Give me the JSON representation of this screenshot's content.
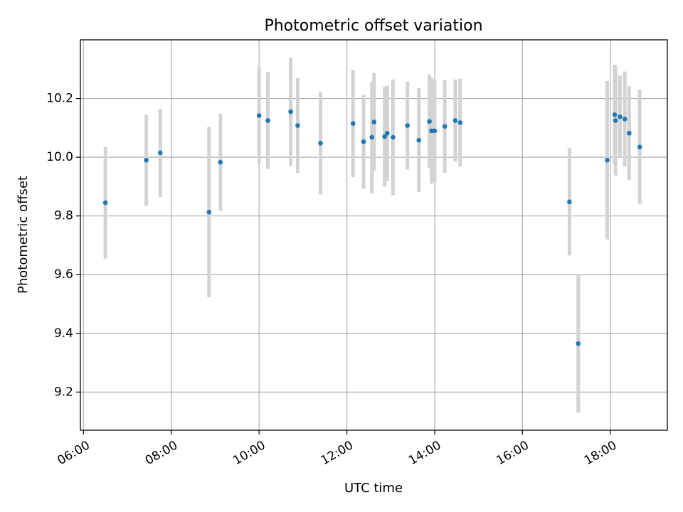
{
  "chart_data": {
    "type": "scatter",
    "title": "Photometric offset variation",
    "xlabel": "UTC time",
    "ylabel": "Photometric offset",
    "x_unit": "hours UTC",
    "xlim": [
      5.93,
      19.3
    ],
    "ylim": [
      9.07,
      10.4
    ],
    "xticks": [
      6,
      8,
      10,
      12,
      14,
      16,
      18
    ],
    "xtick_labels": [
      "06:00",
      "08:00",
      "10:00",
      "12:00",
      "14:00",
      "16:00",
      "18:00"
    ],
    "yticks": [
      9.2,
      9.4,
      9.6,
      9.8,
      10.0,
      10.2
    ],
    "ytick_labels": [
      "9.2",
      "9.4",
      "9.6",
      "9.8",
      "10.0",
      "10.2"
    ],
    "grid": true,
    "point_color": "#1f77b4",
    "errorbar_color": "#d3d3d3",
    "points": [
      {
        "x": 6.5,
        "y": 9.845,
        "err": 0.19
      },
      {
        "x": 7.43,
        "y": 9.99,
        "err": 0.155
      },
      {
        "x": 7.75,
        "y": 10.015,
        "err": 0.15
      },
      {
        "x": 8.86,
        "y": 9.813,
        "err": 0.29
      },
      {
        "x": 9.12,
        "y": 9.983,
        "err": 0.165
      },
      {
        "x": 10.0,
        "y": 10.142,
        "err": 0.165
      },
      {
        "x": 10.2,
        "y": 10.125,
        "err": 0.165
      },
      {
        "x": 10.72,
        "y": 10.155,
        "err": 0.185
      },
      {
        "x": 10.88,
        "y": 10.108,
        "err": 0.162
      },
      {
        "x": 11.4,
        "y": 10.048,
        "err": 0.175
      },
      {
        "x": 12.14,
        "y": 10.115,
        "err": 0.183
      },
      {
        "x": 12.38,
        "y": 10.053,
        "err": 0.16
      },
      {
        "x": 12.57,
        "y": 10.068,
        "err": 0.19
      },
      {
        "x": 12.62,
        "y": 10.12,
        "err": 0.167
      },
      {
        "x": 12.86,
        "y": 10.07,
        "err": 0.17
      },
      {
        "x": 12.92,
        "y": 10.082,
        "err": 0.163
      },
      {
        "x": 13.05,
        "y": 10.068,
        "err": 0.197
      },
      {
        "x": 13.38,
        "y": 10.108,
        "err": 0.15
      },
      {
        "x": 13.64,
        "y": 10.058,
        "err": 0.177
      },
      {
        "x": 13.88,
        "y": 10.122,
        "err": 0.16
      },
      {
        "x": 13.93,
        "y": 10.09,
        "err": 0.18
      },
      {
        "x": 14.0,
        "y": 10.09,
        "err": 0.175
      },
      {
        "x": 14.23,
        "y": 10.105,
        "err": 0.158
      },
      {
        "x": 14.47,
        "y": 10.125,
        "err": 0.14
      },
      {
        "x": 14.58,
        "y": 10.118,
        "err": 0.15
      },
      {
        "x": 17.07,
        "y": 9.848,
        "err": 0.183
      },
      {
        "x": 17.27,
        "y": 9.365,
        "err": 0.235
      },
      {
        "x": 17.93,
        "y": 9.99,
        "err": 0.27
      },
      {
        "x": 18.1,
        "y": 10.145,
        "err": 0.17
      },
      {
        "x": 18.12,
        "y": 10.125,
        "err": 0.187
      },
      {
        "x": 18.22,
        "y": 10.138,
        "err": 0.14
      },
      {
        "x": 18.33,
        "y": 10.13,
        "err": 0.162
      },
      {
        "x": 18.43,
        "y": 10.082,
        "err": 0.16
      },
      {
        "x": 18.67,
        "y": 10.035,
        "err": 0.195
      }
    ]
  }
}
